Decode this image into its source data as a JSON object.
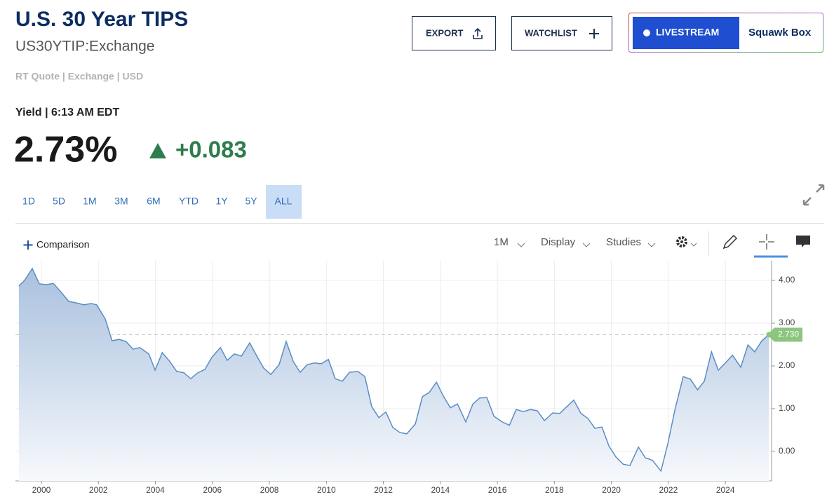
{
  "header": {
    "title": "U.S. 30 Year TIPS",
    "symbol": "US30YTIP:Exchange",
    "quote_info": "RT Quote | Exchange | USD"
  },
  "buttons": {
    "export": "EXPORT",
    "watchlist": "WATCHLIST",
    "livestream": "LIVESTREAM",
    "show": "Squawk Box"
  },
  "quote": {
    "label": "Yield | 6:13 AM EDT",
    "value": "2.73%",
    "change": "+0.083"
  },
  "ranges": [
    "1D",
    "5D",
    "1M",
    "3M",
    "6M",
    "YTD",
    "1Y",
    "5Y",
    "ALL"
  ],
  "active_range_index": 8,
  "toolbar": {
    "comparison": "Comparison",
    "interval": "1M",
    "display": "Display",
    "studies": "Studies"
  },
  "chart_data": {
    "type": "area",
    "color": "#5b8dc4",
    "grid": true,
    "y_axis_side": "right",
    "x": [
      1999.21,
      1999.41,
      1999.68,
      1999.93,
      2000.17,
      2000.42,
      2000.66,
      2000.96,
      2001.25,
      2001.5,
      2001.75,
      2001.94,
      2002.24,
      2002.48,
      2002.73,
      2002.97,
      2003.22,
      2003.45,
      2003.77,
      2003.99,
      2004.24,
      2004.5,
      2004.75,
      2005.0,
      2005.24,
      2005.49,
      2005.74,
      2005.98,
      2006.28,
      2006.52,
      2006.77,
      2007.02,
      2007.31,
      2007.56,
      2007.8,
      2008.05,
      2008.34,
      2008.59,
      2008.84,
      2009.08,
      2009.33,
      2009.58,
      2009.82,
      2010.07,
      2010.31,
      2010.56,
      2010.81,
      2011.1,
      2011.35,
      2011.59,
      2011.84,
      2012.09,
      2012.33,
      2012.58,
      2012.82,
      2013.12,
      2013.37,
      2013.61,
      2013.86,
      2014.1,
      2014.35,
      2014.6,
      2014.89,
      2015.14,
      2015.38,
      2015.63,
      2015.88,
      2016.17,
      2016.42,
      2016.66,
      2016.91,
      2017.16,
      2017.4,
      2017.65,
      2017.94,
      2018.19,
      2018.44,
      2018.68,
      2018.93,
      2019.18,
      2019.42,
      2019.67,
      2019.91,
      2020.16,
      2020.41,
      2020.65,
      2020.95,
      2021.19,
      2021.44,
      2021.74,
      2021.98,
      2022.23,
      2022.52,
      2022.77,
      2023.02,
      2023.26,
      2023.51,
      2023.75,
      2024.0,
      2024.25,
      2024.54,
      2024.79,
      2025.03,
      2025.28,
      2025.53
    ],
    "values": [
      3.87,
      4.0,
      4.28,
      3.92,
      3.9,
      3.93,
      3.75,
      3.51,
      3.47,
      3.43,
      3.46,
      3.43,
      3.1,
      2.59,
      2.62,
      2.57,
      2.39,
      2.43,
      2.28,
      1.9,
      2.31,
      2.11,
      1.87,
      1.84,
      1.7,
      1.84,
      1.92,
      2.2,
      2.43,
      2.13,
      2.28,
      2.23,
      2.54,
      2.23,
      1.95,
      1.8,
      2.03,
      2.57,
      2.1,
      1.85,
      2.03,
      2.07,
      2.05,
      2.15,
      1.7,
      1.64,
      1.85,
      1.87,
      1.75,
      1.05,
      0.79,
      0.92,
      0.56,
      0.44,
      0.41,
      0.64,
      1.28,
      1.38,
      1.62,
      1.3,
      1.02,
      1.11,
      0.69,
      1.11,
      1.25,
      1.26,
      0.82,
      0.69,
      0.61,
      0.98,
      0.93,
      0.98,
      0.95,
      0.72,
      0.9,
      0.89,
      1.05,
      1.2,
      0.89,
      0.77,
      0.54,
      0.57,
      0.13,
      -0.13,
      -0.3,
      -0.33,
      0.1,
      -0.15,
      -0.21,
      -0.46,
      0.18,
      0.98,
      1.75,
      1.69,
      1.44,
      1.64,
      2.33,
      1.9,
      2.07,
      2.25,
      1.97,
      2.49,
      2.33,
      2.59,
      2.73
    ],
    "last_value": {
      "value": 2.73,
      "label": "2.730"
    },
    "xlim": [
      1999.09,
      2025.62
    ],
    "xticks": [
      2000,
      2002,
      2004,
      2006,
      2008,
      2010,
      2012,
      2014,
      2016,
      2018,
      2020,
      2022,
      2024
    ],
    "ylim": [
      -0.69,
      4.46
    ],
    "yticks": [
      {
        "value": 0,
        "label": "0.00"
      },
      {
        "value": 1,
        "label": "1.00"
      },
      {
        "value": 2,
        "label": "2.00"
      },
      {
        "value": 3,
        "label": "3.00"
      },
      {
        "value": 4,
        "label": "4.00"
      }
    ]
  }
}
